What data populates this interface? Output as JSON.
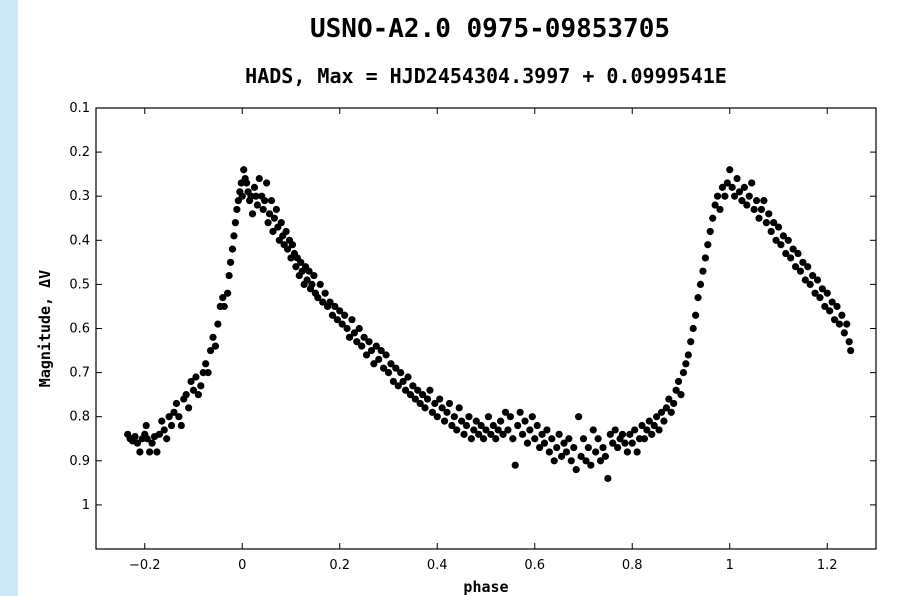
{
  "header": {
    "title": "USNO-A2.0 0975-09853705",
    "subtitle": "HADS, Max = HJD2454304.3997 + 0.0999541E"
  },
  "colors": {
    "sidebar": "#cde9f7",
    "points": "#000000"
  },
  "chart_data": {
    "type": "scatter",
    "title": "USNO-A2.0 0975-09853705",
    "subtitle": "HADS, Max = HJD2454304.3997 + 0.0999541E",
    "xlabel": "phase",
    "ylabel": "Magnitude, ΔV",
    "xlim": [
      -0.3,
      1.3
    ],
    "ylim": [
      0.1,
      1.1
    ],
    "y_inverted": true,
    "grid": false,
    "xticks": [
      {
        "value": -0.2,
        "label": "−0.2"
      },
      {
        "value": 0,
        "label": "0"
      },
      {
        "value": 0.2,
        "label": "0.2"
      },
      {
        "value": 0.4,
        "label": "0.4"
      },
      {
        "value": 0.6,
        "label": "0.6"
      },
      {
        "value": 0.8,
        "label": "0.8"
      },
      {
        "value": 1,
        "label": "1"
      },
      {
        "value": 1.2,
        "label": "1.2"
      }
    ],
    "yticks": [
      {
        "value": 0.1,
        "label": "0.1"
      },
      {
        "value": 0.2,
        "label": "0.2"
      },
      {
        "value": 0.3,
        "label": "0.3"
      },
      {
        "value": 0.4,
        "label": "0.4"
      },
      {
        "value": 0.5,
        "label": "0.5"
      },
      {
        "value": 0.6,
        "label": "0.6"
      },
      {
        "value": 0.7,
        "label": "0.7"
      },
      {
        "value": 0.8,
        "label": "0.8"
      },
      {
        "value": 0.9,
        "label": "0.9"
      },
      {
        "value": 1,
        "label": "1"
      }
    ],
    "points": [
      [
        -0.235,
        0.84
      ],
      [
        -0.23,
        0.85
      ],
      [
        -0.225,
        0.855
      ],
      [
        -0.22,
        0.845
      ],
      [
        -0.215,
        0.86
      ],
      [
        -0.21,
        0.88
      ],
      [
        -0.205,
        0.85
      ],
      [
        -0.2,
        0.84
      ],
      [
        -0.197,
        0.82
      ],
      [
        -0.195,
        0.85
      ],
      [
        -0.19,
        0.88
      ],
      [
        -0.185,
        0.86
      ],
      [
        -0.18,
        0.845
      ],
      [
        -0.175,
        0.88
      ],
      [
        -0.17,
        0.84
      ],
      [
        -0.165,
        0.81
      ],
      [
        -0.16,
        0.83
      ],
      [
        -0.155,
        0.85
      ],
      [
        -0.15,
        0.8
      ],
      [
        -0.145,
        0.82
      ],
      [
        -0.14,
        0.79
      ],
      [
        -0.135,
        0.77
      ],
      [
        -0.13,
        0.8
      ],
      [
        -0.125,
        0.82
      ],
      [
        -0.12,
        0.76
      ],
      [
        -0.115,
        0.75
      ],
      [
        -0.11,
        0.78
      ],
      [
        -0.105,
        0.72
      ],
      [
        -0.1,
        0.74
      ],
      [
        -0.095,
        0.71
      ],
      [
        -0.09,
        0.75
      ],
      [
        -0.085,
        0.73
      ],
      [
        -0.08,
        0.7
      ],
      [
        -0.075,
        0.68
      ],
      [
        -0.07,
        0.7
      ],
      [
        -0.065,
        0.65
      ],
      [
        -0.06,
        0.62
      ],
      [
        -0.055,
        0.64
      ],
      [
        -0.05,
        0.59
      ],
      [
        -0.045,
        0.55
      ],
      [
        -0.04,
        0.53
      ],
      [
        -0.037,
        0.55
      ],
      [
        -0.03,
        0.52
      ],
      [
        -0.027,
        0.48
      ],
      [
        -0.024,
        0.45
      ],
      [
        -0.02,
        0.42
      ],
      [
        -0.017,
        0.39
      ],
      [
        -0.014,
        0.36
      ],
      [
        -0.011,
        0.33
      ],
      [
        -0.008,
        0.31
      ],
      [
        -0.005,
        0.29
      ],
      [
        -0.002,
        0.27
      ],
      [
        0.0,
        0.3
      ],
      [
        0.003,
        0.24
      ],
      [
        0.006,
        0.26
      ],
      [
        0.009,
        0.27
      ],
      [
        0.012,
        0.29
      ],
      [
        0.015,
        0.31
      ],
      [
        0.018,
        0.3
      ],
      [
        0.021,
        0.34
      ],
      [
        0.025,
        0.28
      ],
      [
        0.028,
        0.3
      ],
      [
        0.031,
        0.32
      ],
      [
        0.035,
        0.26
      ],
      [
        0.04,
        0.3
      ],
      [
        0.043,
        0.33
      ],
      [
        0.046,
        0.31
      ],
      [
        0.05,
        0.27
      ],
      [
        0.053,
        0.36
      ],
      [
        0.056,
        0.34
      ],
      [
        0.06,
        0.31
      ],
      [
        0.063,
        0.38
      ],
      [
        0.066,
        0.35
      ],
      [
        0.07,
        0.33
      ],
      [
        0.073,
        0.37
      ],
      [
        0.076,
        0.4
      ],
      [
        0.08,
        0.36
      ],
      [
        0.083,
        0.39
      ],
      [
        0.086,
        0.41
      ],
      [
        0.09,
        0.38
      ],
      [
        0.093,
        0.42
      ],
      [
        0.097,
        0.4
      ],
      [
        0.1,
        0.44
      ],
      [
        0.103,
        0.41
      ],
      [
        0.107,
        0.43
      ],
      [
        0.11,
        0.46
      ],
      [
        0.113,
        0.44
      ],
      [
        0.117,
        0.48
      ],
      [
        0.12,
        0.45
      ],
      [
        0.123,
        0.47
      ],
      [
        0.127,
        0.5
      ],
      [
        0.13,
        0.46
      ],
      [
        0.133,
        0.49
      ],
      [
        0.137,
        0.47
      ],
      [
        0.14,
        0.51
      ],
      [
        0.143,
        0.5
      ],
      [
        0.147,
        0.48
      ],
      [
        0.15,
        0.52
      ],
      [
        0.155,
        0.53
      ],
      [
        0.16,
        0.5
      ],
      [
        0.165,
        0.54
      ],
      [
        0.17,
        0.52
      ],
      [
        0.175,
        0.55
      ],
      [
        0.18,
        0.54
      ],
      [
        0.185,
        0.57
      ],
      [
        0.19,
        0.55
      ],
      [
        0.195,
        0.58
      ],
      [
        0.2,
        0.56
      ],
      [
        0.205,
        0.59
      ],
      [
        0.21,
        0.57
      ],
      [
        0.215,
        0.6
      ],
      [
        0.22,
        0.62
      ],
      [
        0.225,
        0.58
      ],
      [
        0.23,
        0.61
      ],
      [
        0.235,
        0.63
      ],
      [
        0.24,
        0.6
      ],
      [
        0.245,
        0.64
      ],
      [
        0.25,
        0.62
      ],
      [
        0.255,
        0.66
      ],
      [
        0.26,
        0.63
      ],
      [
        0.265,
        0.65
      ],
      [
        0.27,
        0.68
      ],
      [
        0.275,
        0.64
      ],
      [
        0.28,
        0.67
      ],
      [
        0.285,
        0.65
      ],
      [
        0.29,
        0.69
      ],
      [
        0.295,
        0.66
      ],
      [
        0.3,
        0.7
      ],
      [
        0.305,
        0.68
      ],
      [
        0.31,
        0.72
      ],
      [
        0.315,
        0.69
      ],
      [
        0.32,
        0.73
      ],
      [
        0.325,
        0.7
      ],
      [
        0.33,
        0.72
      ],
      [
        0.335,
        0.74
      ],
      [
        0.34,
        0.71
      ],
      [
        0.345,
        0.75
      ],
      [
        0.35,
        0.73
      ],
      [
        0.355,
        0.76
      ],
      [
        0.36,
        0.74
      ],
      [
        0.365,
        0.77
      ],
      [
        0.37,
        0.75
      ],
      [
        0.375,
        0.78
      ],
      [
        0.38,
        0.76
      ],
      [
        0.385,
        0.74
      ],
      [
        0.39,
        0.79
      ],
      [
        0.395,
        0.77
      ],
      [
        0.4,
        0.8
      ],
      [
        0.405,
        0.76
      ],
      [
        0.41,
        0.78
      ],
      [
        0.415,
        0.81
      ],
      [
        0.42,
        0.79
      ],
      [
        0.425,
        0.77
      ],
      [
        0.43,
        0.82
      ],
      [
        0.435,
        0.8
      ],
      [
        0.44,
        0.83
      ],
      [
        0.445,
        0.78
      ],
      [
        0.45,
        0.81
      ],
      [
        0.455,
        0.84
      ],
      [
        0.46,
        0.82
      ],
      [
        0.465,
        0.8
      ],
      [
        0.47,
        0.85
      ],
      [
        0.475,
        0.83
      ],
      [
        0.48,
        0.81
      ],
      [
        0.485,
        0.84
      ],
      [
        0.49,
        0.82
      ],
      [
        0.495,
        0.85
      ],
      [
        0.5,
        0.83
      ],
      [
        0.505,
        0.8
      ],
      [
        0.51,
        0.84
      ],
      [
        0.515,
        0.82
      ],
      [
        0.52,
        0.85
      ],
      [
        0.525,
        0.83
      ],
      [
        0.53,
        0.81
      ],
      [
        0.535,
        0.84
      ],
      [
        0.54,
        0.79
      ],
      [
        0.545,
        0.83
      ],
      [
        0.55,
        0.8
      ],
      [
        0.555,
        0.85
      ],
      [
        0.56,
        0.91
      ],
      [
        0.565,
        0.82
      ],
      [
        0.57,
        0.79
      ],
      [
        0.575,
        0.84
      ],
      [
        0.58,
        0.81
      ],
      [
        0.585,
        0.86
      ],
      [
        0.59,
        0.83
      ],
      [
        0.595,
        0.8
      ],
      [
        0.6,
        0.85
      ],
      [
        0.605,
        0.82
      ],
      [
        0.61,
        0.87
      ],
      [
        0.615,
        0.84
      ],
      [
        0.62,
        0.86
      ],
      [
        0.625,
        0.83
      ],
      [
        0.63,
        0.88
      ],
      [
        0.635,
        0.85
      ],
      [
        0.64,
        0.9
      ],
      [
        0.645,
        0.87
      ],
      [
        0.65,
        0.84
      ],
      [
        0.655,
        0.89
      ],
      [
        0.66,
        0.86
      ],
      [
        0.665,
        0.88
      ],
      [
        0.67,
        0.85
      ],
      [
        0.675,
        0.9
      ],
      [
        0.68,
        0.87
      ],
      [
        0.685,
        0.92
      ],
      [
        0.69,
        0.8
      ],
      [
        0.695,
        0.89
      ],
      [
        0.7,
        0.85
      ],
      [
        0.705,
        0.9
      ],
      [
        0.71,
        0.87
      ],
      [
        0.715,
        0.91
      ],
      [
        0.72,
        0.83
      ],
      [
        0.725,
        0.88
      ],
      [
        0.73,
        0.85
      ],
      [
        0.735,
        0.9
      ],
      [
        0.74,
        0.87
      ],
      [
        0.745,
        0.89
      ],
      [
        0.75,
        0.94
      ],
      [
        0.755,
        0.84
      ],
      [
        0.76,
        0.86
      ],
      [
        0.765,
        0.83
      ],
      [
        0.77,
        0.87
      ],
      [
        0.775,
        0.85
      ],
      [
        0.78,
        0.84
      ],
      [
        0.785,
        0.86
      ],
      [
        0.79,
        0.88
      ],
      [
        0.795,
        0.84
      ],
      [
        0.8,
        0.86
      ],
      [
        0.805,
        0.83
      ],
      [
        0.81,
        0.88
      ],
      [
        0.815,
        0.85
      ],
      [
        0.82,
        0.82
      ],
      [
        0.825,
        0.85
      ],
      [
        0.83,
        0.83
      ],
      [
        0.835,
        0.81
      ],
      [
        0.84,
        0.84
      ],
      [
        0.845,
        0.82
      ],
      [
        0.85,
        0.8
      ],
      [
        0.855,
        0.83
      ],
      [
        0.86,
        0.79
      ],
      [
        0.865,
        0.81
      ],
      [
        0.87,
        0.78
      ],
      [
        0.875,
        0.76
      ],
      [
        0.88,
        0.79
      ],
      [
        0.885,
        0.77
      ],
      [
        0.89,
        0.74
      ],
      [
        0.895,
        0.72
      ],
      [
        0.9,
        0.75
      ],
      [
        0.905,
        0.7
      ],
      [
        0.91,
        0.68
      ],
      [
        0.915,
        0.66
      ],
      [
        0.92,
        0.63
      ],
      [
        0.925,
        0.6
      ],
      [
        0.93,
        0.57
      ],
      [
        0.935,
        0.53
      ],
      [
        0.94,
        0.5
      ],
      [
        0.945,
        0.47
      ],
      [
        0.95,
        0.44
      ],
      [
        0.955,
        0.41
      ],
      [
        0.96,
        0.38
      ],
      [
        0.965,
        0.35
      ],
      [
        0.97,
        0.32
      ],
      [
        0.975,
        0.3
      ],
      [
        0.98,
        0.33
      ],
      [
        0.985,
        0.28
      ],
      [
        0.99,
        0.3
      ],
      [
        0.995,
        0.27
      ],
      [
        1.0,
        0.24
      ],
      [
        1.005,
        0.28
      ],
      [
        1.01,
        0.3
      ],
      [
        1.015,
        0.26
      ],
      [
        1.02,
        0.29
      ],
      [
        1.025,
        0.31
      ],
      [
        1.03,
        0.28
      ],
      [
        1.035,
        0.32
      ],
      [
        1.04,
        0.3
      ],
      [
        1.045,
        0.27
      ],
      [
        1.05,
        0.33
      ],
      [
        1.055,
        0.31
      ],
      [
        1.06,
        0.35
      ],
      [
        1.065,
        0.33
      ],
      [
        1.07,
        0.31
      ],
      [
        1.075,
        0.36
      ],
      [
        1.08,
        0.34
      ],
      [
        1.085,
        0.38
      ],
      [
        1.09,
        0.36
      ],
      [
        1.095,
        0.4
      ],
      [
        1.1,
        0.37
      ],
      [
        1.105,
        0.41
      ],
      [
        1.11,
        0.39
      ],
      [
        1.115,
        0.43
      ],
      [
        1.12,
        0.4
      ],
      [
        1.125,
        0.44
      ],
      [
        1.13,
        0.42
      ],
      [
        1.135,
        0.46
      ],
      [
        1.14,
        0.43
      ],
      [
        1.145,
        0.47
      ],
      [
        1.15,
        0.45
      ],
      [
        1.155,
        0.49
      ],
      [
        1.16,
        0.46
      ],
      [
        1.165,
        0.5
      ],
      [
        1.17,
        0.48
      ],
      [
        1.175,
        0.52
      ],
      [
        1.18,
        0.49
      ],
      [
        1.185,
        0.53
      ],
      [
        1.19,
        0.51
      ],
      [
        1.195,
        0.55
      ],
      [
        1.2,
        0.52
      ],
      [
        1.205,
        0.56
      ],
      [
        1.21,
        0.54
      ],
      [
        1.215,
        0.58
      ],
      [
        1.22,
        0.55
      ],
      [
        1.225,
        0.59
      ],
      [
        1.23,
        0.57
      ],
      [
        1.235,
        0.61
      ],
      [
        1.24,
        0.59
      ],
      [
        1.245,
        0.63
      ],
      [
        1.248,
        0.65
      ]
    ]
  }
}
